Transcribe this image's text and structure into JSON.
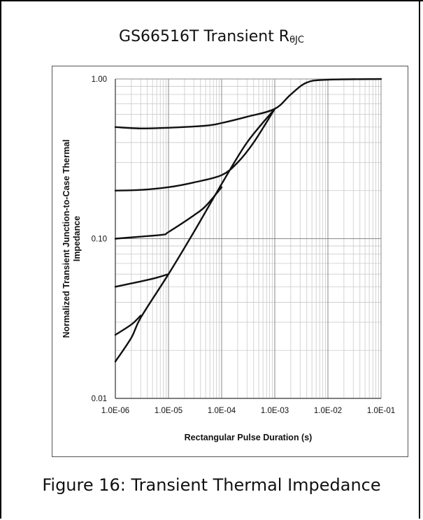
{
  "title": {
    "main": "GS66516T Transient R",
    "subscript": "θJC"
  },
  "caption": "Figure 16: Transient Thermal Impedance",
  "chart_data": {
    "type": "line",
    "title": "GS66516T Transient RθJC",
    "xlabel": "Rectangular Pulse Duration (s)",
    "ylabel": "Normalized Transient Junction-to-Case Thermal Impedance",
    "xscale": "log",
    "yscale": "log",
    "xlim": [
      1e-06,
      0.1
    ],
    "ylim": [
      0.01,
      1.0
    ],
    "x_ticks": [
      "1.0E-06",
      "1.0E-05",
      "1.0E-04",
      "1.0E-03",
      "1.0E-02",
      "1.0E-01"
    ],
    "y_ticks": [
      "0.01",
      "0.10",
      "1.00"
    ],
    "grid": true,
    "line_color": "#111111",
    "series": [
      {
        "points": [
          [
            1e-06,
            0.5
          ],
          [
            3e-06,
            0.49
          ],
          [
            1e-05,
            0.495
          ],
          [
            5e-05,
            0.51
          ],
          [
            0.0001,
            0.53
          ],
          [
            0.0003,
            0.58
          ],
          [
            0.001,
            0.65
          ],
          [
            0.002,
            0.8
          ],
          [
            0.004,
            0.95
          ],
          [
            0.01,
            0.99
          ],
          [
            0.1,
            1.0
          ]
        ]
      },
      {
        "points": [
          [
            1e-06,
            0.2
          ],
          [
            3e-06,
            0.202
          ],
          [
            1e-05,
            0.21
          ],
          [
            3e-05,
            0.225
          ],
          [
            0.0001,
            0.25
          ],
          [
            0.0002,
            0.3
          ],
          [
            0.0004,
            0.4
          ],
          [
            0.001,
            0.65
          ]
        ]
      },
      {
        "points": [
          [
            1e-06,
            0.1
          ],
          [
            3e-06,
            0.103
          ],
          [
            8e-06,
            0.106
          ],
          [
            1e-05,
            0.11
          ],
          [
            3e-05,
            0.14
          ],
          [
            5e-05,
            0.16
          ],
          [
            0.0001,
            0.21
          ]
        ]
      },
      {
        "points": [
          [
            1e-06,
            0.05
          ],
          [
            3e-06,
            0.054
          ],
          [
            6e-06,
            0.057
          ],
          [
            1e-05,
            0.06
          ]
        ]
      },
      {
        "points": [
          [
            1e-06,
            0.025
          ],
          [
            2e-06,
            0.029
          ],
          [
            3e-06,
            0.033
          ]
        ]
      },
      {
        "points": [
          [
            1e-06,
            0.017
          ],
          [
            2e-06,
            0.024
          ],
          [
            3e-06,
            0.032
          ],
          [
            1e-05,
            0.06
          ],
          [
            3e-05,
            0.11
          ],
          [
            0.0001,
            0.22
          ],
          [
            0.0003,
            0.4
          ],
          [
            0.001,
            0.65
          ]
        ]
      }
    ]
  }
}
